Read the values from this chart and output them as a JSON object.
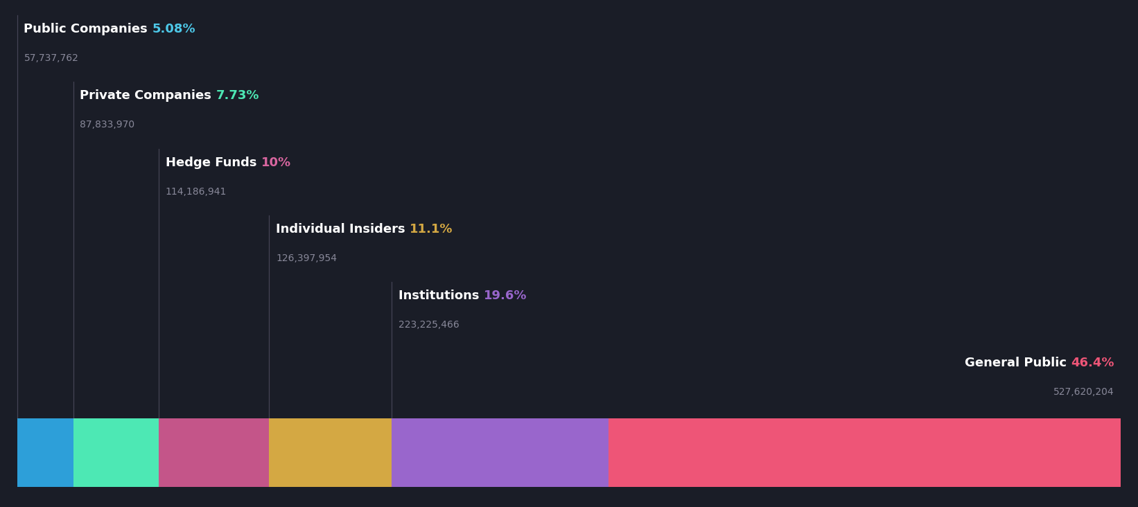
{
  "background_color": "#1a1d27",
  "categories": [
    "Public Companies",
    "Private Companies",
    "Hedge Funds",
    "Individual Insiders",
    "Institutions",
    "General Public"
  ],
  "percentages": [
    5.08,
    7.73,
    10.0,
    11.1,
    19.6,
    46.4
  ],
  "pct_labels": [
    "5.08%",
    "7.73%",
    "10%",
    "11.1%",
    "19.6%",
    "46.4%"
  ],
  "values": [
    57737762,
    87833970,
    114186941,
    126397954,
    223225466,
    527620204
  ],
  "pct_colors": [
    "#4dc8e8",
    "#4de8b4",
    "#d966a0",
    "#d4a843",
    "#9966cc",
    "#ee5577"
  ],
  "bar_colors": [
    "#2d9fd9",
    "#4de8b4",
    "#c45589",
    "#d4a843",
    "#9966cc",
    "#ee5577"
  ],
  "label_color": "#ffffff",
  "value_color": "#888899",
  "label_fontsize": 13,
  "value_fontsize": 10,
  "figsize": [
    16.42,
    7.32
  ],
  "dpi": 100
}
